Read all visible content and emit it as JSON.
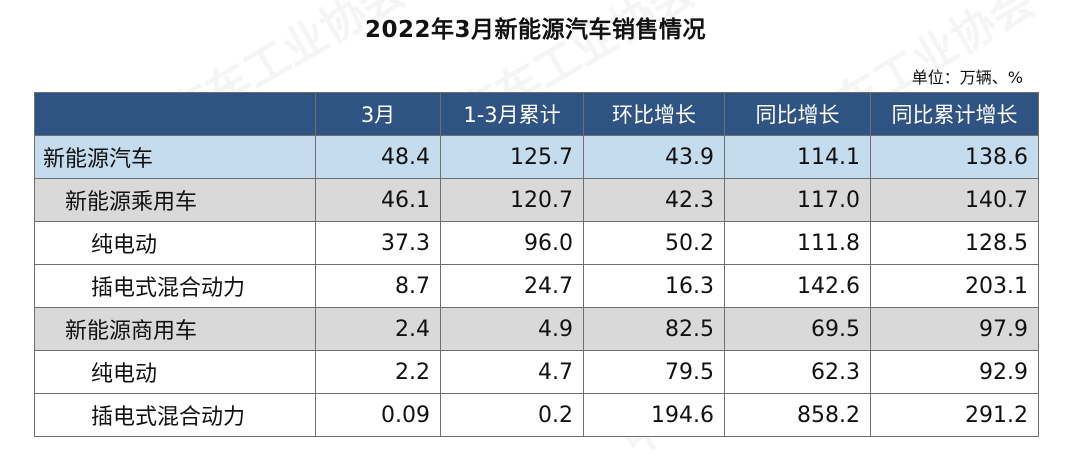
{
  "title": "2022年3月新能源汽车销售情况",
  "unit": "单位：万辆、%",
  "watermark": "中国汽车工业协会",
  "colors": {
    "header_bg": "#2f5382",
    "level0_bg": "#c5dbee",
    "level1_bg": "#d9d9d9"
  },
  "table": {
    "headers": [
      "",
      "3月",
      "1-3月累计",
      "环比增长",
      "同比增长",
      "同比累计增长"
    ],
    "rows": [
      {
        "name": "新能源汽车",
        "level": 0,
        "values": [
          "48.4",
          "125.7",
          "43.9",
          "114.1",
          "138.6"
        ]
      },
      {
        "name": "新能源乘用车",
        "level": 1,
        "values": [
          "46.1",
          "120.7",
          "42.3",
          "117.0",
          "140.7"
        ]
      },
      {
        "name": "纯电动",
        "level": 2,
        "values": [
          "37.3",
          "96.0",
          "50.2",
          "111.8",
          "128.5"
        ]
      },
      {
        "name": "插电式混合动力",
        "level": 2,
        "values": [
          "8.7",
          "24.7",
          "16.3",
          "142.6",
          "203.1"
        ]
      },
      {
        "name": "新能源商用车",
        "level": 1,
        "values": [
          "2.4",
          "4.9",
          "82.5",
          "69.5",
          "97.9"
        ]
      },
      {
        "name": "纯电动",
        "level": 2,
        "values": [
          "2.2",
          "4.7",
          "79.5",
          "62.3",
          "92.9"
        ]
      },
      {
        "name": "插电式混合动力",
        "level": 2,
        "values": [
          "0.09",
          "0.2",
          "194.6",
          "858.2",
          "291.2"
        ]
      }
    ]
  }
}
